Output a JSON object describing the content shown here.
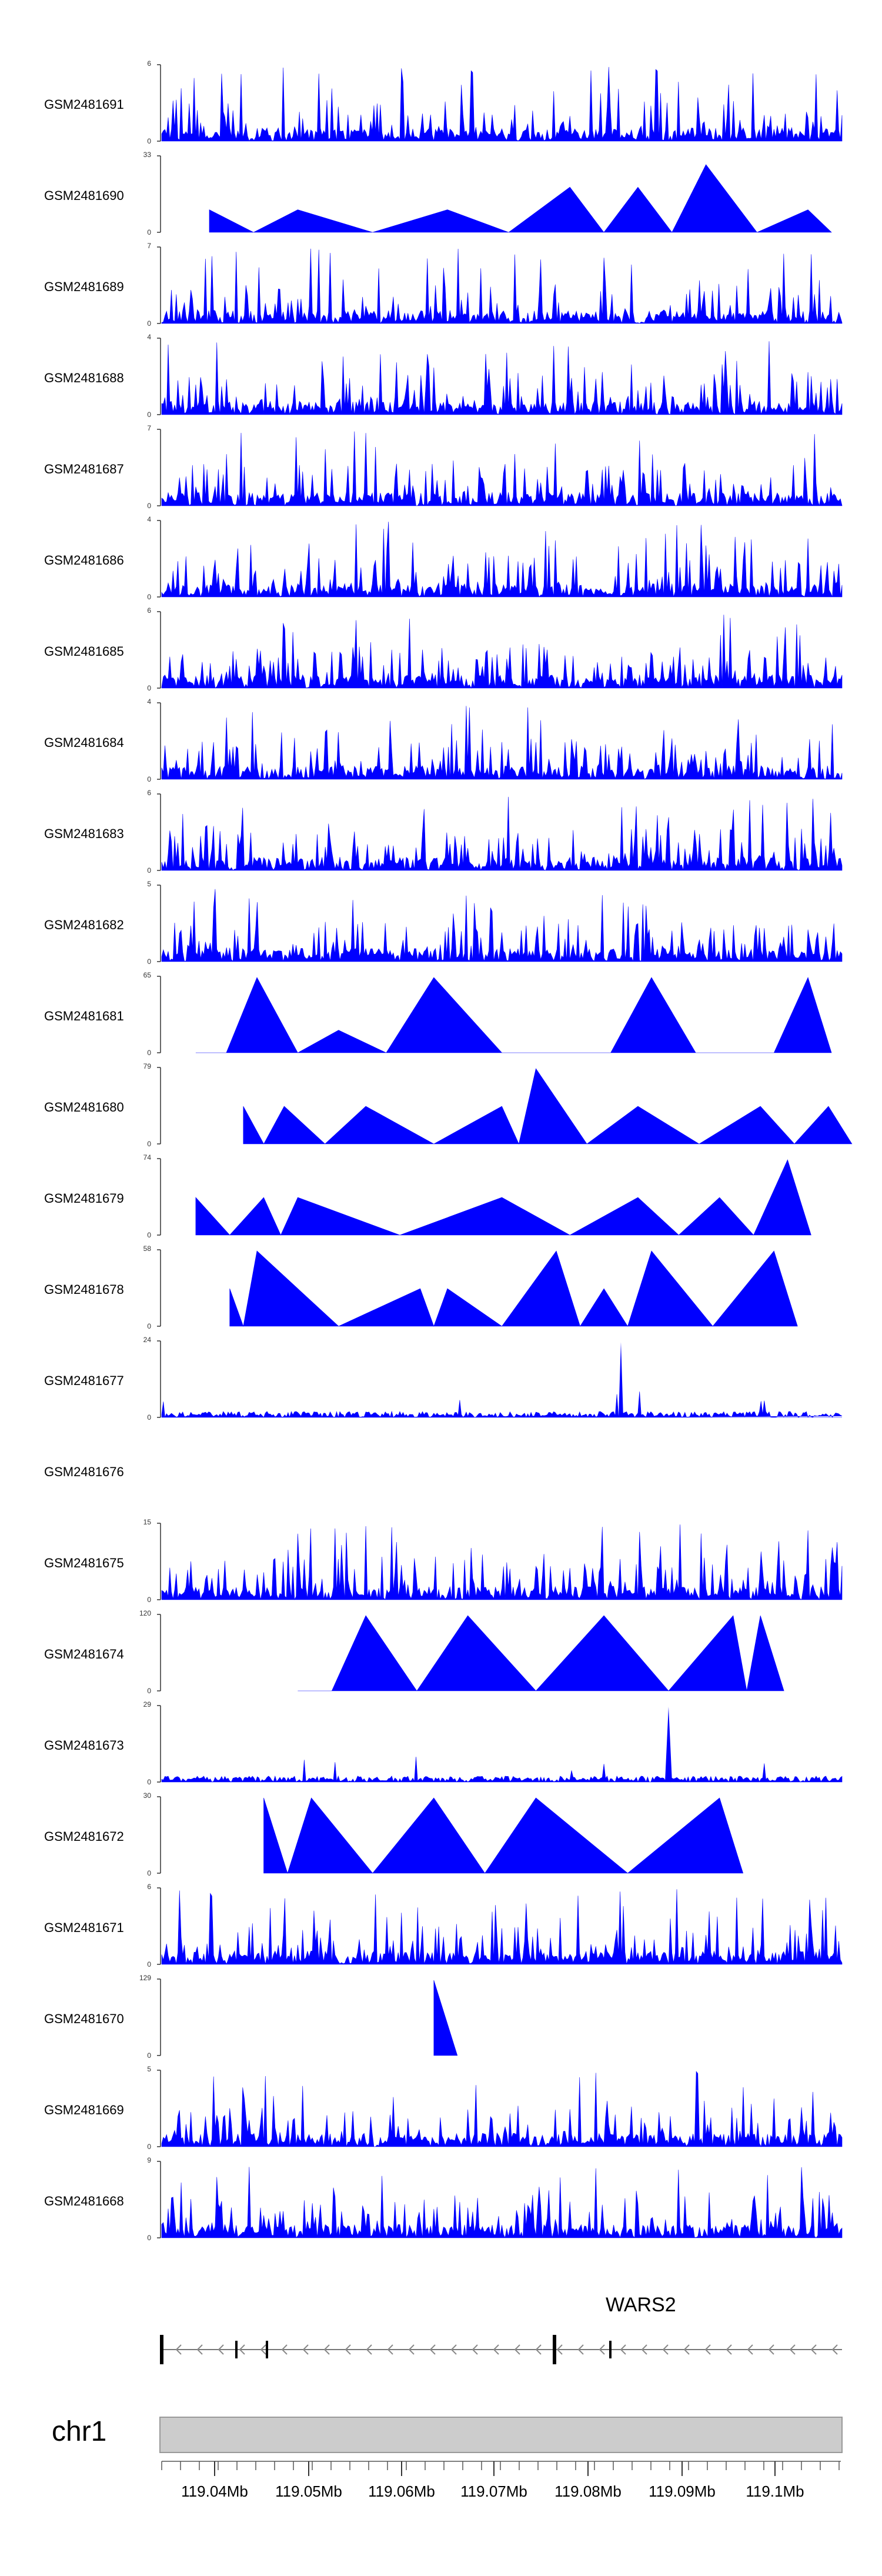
{
  "chart_data": {
    "type": "area",
    "chromosome": "chr1",
    "gene": "WARS2",
    "x_ticks": [
      "119.04Mb",
      "119.05Mb",
      "119.06Mb",
      "119.07Mb",
      "119.08Mb",
      "119.09Mb",
      "119.1Mb"
    ],
    "tracks": [
      {
        "name": "GSM2481691",
        "ymax": "6",
        "ymin": "0",
        "mode": "spiky",
        "max": 6
      },
      {
        "name": "GSM2481690",
        "ymax": "33",
        "ymin": "0",
        "mode": "triangles",
        "max": 33,
        "peaks": [
          [
            0.07,
            0.3
          ],
          [
            0.2,
            0.3
          ],
          [
            0.42,
            0.3
          ],
          [
            0.6,
            0.6
          ],
          [
            0.7,
            0.6
          ],
          [
            0.8,
            0.9
          ],
          [
            0.95,
            0.3
          ]
        ]
      },
      {
        "name": "GSM2481689",
        "ymax": "7",
        "ymin": "0",
        "mode": "spiky",
        "max": 7
      },
      {
        "name": "GSM2481688",
        "ymax": "4",
        "ymin": "0",
        "mode": "spiky",
        "max": 4
      },
      {
        "name": "GSM2481687",
        "ymax": "7",
        "ymin": "0",
        "mode": "spiky",
        "max": 7
      },
      {
        "name": "GSM2481686",
        "ymax": "4",
        "ymin": "0",
        "mode": "spiky",
        "max": 4
      },
      {
        "name": "GSM2481685",
        "ymax": "6",
        "ymin": "0",
        "mode": "spiky",
        "max": 6
      },
      {
        "name": "GSM2481684",
        "ymax": "4",
        "ymin": "0",
        "mode": "spiky",
        "max": 4
      },
      {
        "name": "GSM2481683",
        "ymax": "6",
        "ymin": "0",
        "mode": "spiky",
        "max": 6
      },
      {
        "name": "GSM2481682",
        "ymax": "5",
        "ymin": "0",
        "mode": "spiky",
        "max": 5
      },
      {
        "name": "GSM2481681",
        "ymax": "65",
        "ymin": "0",
        "mode": "triangles",
        "max": 65,
        "peaks": [
          [
            0.05,
            0.0
          ],
          [
            0.14,
            1.0
          ],
          [
            0.26,
            0.3
          ],
          [
            0.4,
            1.0
          ],
          [
            0.6,
            0.0
          ],
          [
            0.72,
            1.0
          ],
          [
            0.85,
            0.0
          ],
          [
            0.95,
            1.0
          ]
        ]
      },
      {
        "name": "GSM2481680",
        "ymax": "79",
        "ymin": "0",
        "mode": "triangles",
        "max": 79,
        "peaks": [
          [
            0.12,
            0.5
          ],
          [
            0.18,
            0.5
          ],
          [
            0.3,
            0.5
          ],
          [
            0.5,
            0.5
          ],
          [
            0.55,
            1.0
          ],
          [
            0.7,
            0.5
          ],
          [
            0.88,
            0.5
          ],
          [
            0.98,
            0.5
          ]
        ]
      },
      {
        "name": "GSM2481679",
        "ymax": "74",
        "ymin": "0",
        "mode": "triangles",
        "max": 74,
        "peaks": [
          [
            0.05,
            0.5
          ],
          [
            0.15,
            0.5
          ],
          [
            0.2,
            0.5
          ],
          [
            0.5,
            0.5
          ],
          [
            0.7,
            0.5
          ],
          [
            0.82,
            0.5
          ],
          [
            0.92,
            1.0
          ]
        ]
      },
      {
        "name": "GSM2481678",
        "ymax": "58",
        "ymin": "0",
        "mode": "triangles",
        "max": 58,
        "peaks": [
          [
            0.1,
            0.5
          ],
          [
            0.14,
            1.0
          ],
          [
            0.38,
            0.5
          ],
          [
            0.42,
            0.5
          ],
          [
            0.58,
            1.0
          ],
          [
            0.65,
            0.5
          ],
          [
            0.72,
            1.0
          ],
          [
            0.9,
            1.0
          ]
        ]
      },
      {
        "name": "GSM2481677",
        "ymax": "24",
        "ymin": "0",
        "mode": "spiky",
        "max": 24
      },
      {
        "name": "GSM2481676",
        "ymax": "",
        "ymin": "",
        "mode": "empty",
        "max": 0
      },
      {
        "name": "GSM2481675",
        "ymax": "15",
        "ymin": "0",
        "mode": "spiky",
        "max": 15
      },
      {
        "name": "GSM2481674",
        "ymax": "120",
        "ymin": "0",
        "mode": "triangles",
        "max": 120,
        "peaks": [
          [
            0.2,
            0.0
          ],
          [
            0.3,
            1.0
          ],
          [
            0.45,
            1.0
          ],
          [
            0.65,
            1.0
          ],
          [
            0.84,
            1.0
          ],
          [
            0.88,
            1.0
          ]
        ]
      },
      {
        "name": "GSM2481673",
        "ymax": "29",
        "ymin": "0",
        "mode": "spiky",
        "max": 29
      },
      {
        "name": "GSM2481672",
        "ymax": "30",
        "ymin": "0",
        "mode": "triangles",
        "max": 30,
        "peaks": [
          [
            0.15,
            1.0
          ],
          [
            0.22,
            1.0
          ],
          [
            0.4,
            1.0
          ],
          [
            0.55,
            1.0
          ],
          [
            0.82,
            1.0
          ]
        ]
      },
      {
        "name": "GSM2481671",
        "ymax": "6",
        "ymin": "0",
        "mode": "spiky",
        "max": 6
      },
      {
        "name": "GSM2481670",
        "ymax": "129",
        "ymin": "0",
        "mode": "triangles",
        "max": 129,
        "peaks": [
          [
            0.4,
            1.0
          ]
        ]
      },
      {
        "name": "GSM2481669",
        "ymax": "5",
        "ymin": "0",
        "mode": "spiky",
        "max": 5
      },
      {
        "name": "GSM2481668",
        "ymax": "9",
        "ymin": "0",
        "mode": "spiky",
        "max": 9
      }
    ],
    "colors": {
      "fill": "#0000ff",
      "axis": "#222222",
      "ideogram": "#cccccc"
    }
  }
}
